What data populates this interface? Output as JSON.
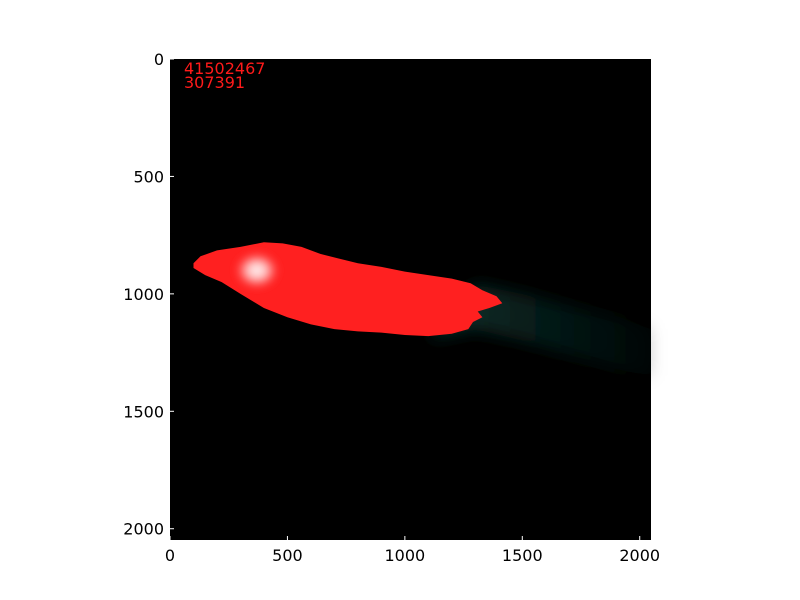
{
  "chart_data": {
    "type": "heatmap",
    "image_size": [
      2048,
      2048
    ],
    "xlim": [
      0,
      2048
    ],
    "ylim": [
      2048,
      0
    ],
    "x_ticks": [
      0,
      500,
      1000,
      1500,
      2000
    ],
    "y_ticks": [
      0,
      500,
      1000,
      1500,
      2000
    ],
    "x_tick_labels": [
      "0",
      "500",
      "1000",
      "1500",
      "2000"
    ],
    "y_tick_labels": [
      "0",
      "500",
      "1000",
      "1500",
      "2000"
    ],
    "annotations": [
      "41502467",
      "307391"
    ],
    "background_color": "#000000",
    "highlight_color": "#ff2020",
    "haze_color": "#0a2a26",
    "bright_core_center": [
      370,
      900
    ],
    "highlighted_region_outline": [
      [
        100,
        870
      ],
      [
        130,
        840
      ],
      [
        200,
        815
      ],
      [
        300,
        800
      ],
      [
        400,
        780
      ],
      [
        480,
        785
      ],
      [
        560,
        800
      ],
      [
        640,
        830
      ],
      [
        720,
        850
      ],
      [
        800,
        870
      ],
      [
        900,
        885
      ],
      [
        1000,
        905
      ],
      [
        1100,
        920
      ],
      [
        1200,
        935
      ],
      [
        1280,
        955
      ],
      [
        1330,
        985
      ],
      [
        1390,
        1010
      ],
      [
        1415,
        1040
      ],
      [
        1360,
        1060
      ],
      [
        1310,
        1075
      ],
      [
        1330,
        1100
      ],
      [
        1290,
        1120
      ],
      [
        1270,
        1150
      ],
      [
        1200,
        1170
      ],
      [
        1100,
        1180
      ],
      [
        1000,
        1175
      ],
      [
        900,
        1165
      ],
      [
        800,
        1160
      ],
      [
        700,
        1150
      ],
      [
        600,
        1130
      ],
      [
        500,
        1100
      ],
      [
        400,
        1060
      ],
      [
        300,
        1000
      ],
      [
        220,
        950
      ],
      [
        150,
        920
      ],
      [
        100,
        890
      ]
    ],
    "haze_region_outline": [
      [
        1300,
        960
      ],
      [
        1500,
        1000
      ],
      [
        1700,
        1050
      ],
      [
        1900,
        1100
      ],
      [
        2048,
        1150
      ],
      [
        2048,
        1350
      ],
      [
        1900,
        1320
      ],
      [
        1700,
        1260
      ],
      [
        1500,
        1200
      ],
      [
        1300,
        1150
      ],
      [
        1100,
        1190
      ]
    ],
    "grid": false
  }
}
